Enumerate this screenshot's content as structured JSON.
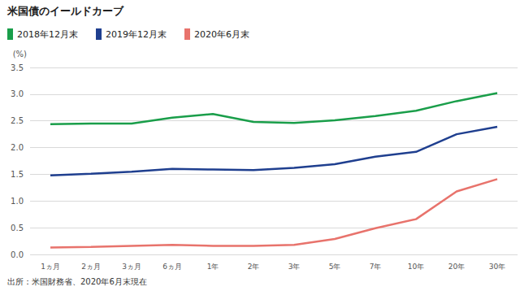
{
  "chart_data": {
    "type": "line",
    "title": "米国債のイールドカーブ",
    "ylabel": "(%)",
    "annotations": [
      "出所：米国財務省、2020年6月末現在"
    ],
    "categories": [
      "1ヵ月",
      "2ヵ月",
      "3ヵ月",
      "6ヵ月",
      "1年",
      "2年",
      "3年",
      "5年",
      "7年",
      "10年",
      "20年",
      "30年"
    ],
    "series": [
      {
        "name": "2018年12月末",
        "color": "#1a9e4a",
        "values": [
          2.44,
          2.45,
          2.45,
          2.56,
          2.63,
          2.48,
          2.46,
          2.51,
          2.59,
          2.69,
          2.87,
          3.02
        ]
      },
      {
        "name": "2019年12月末",
        "color": "#1f3f8f",
        "values": [
          1.48,
          1.51,
          1.55,
          1.6,
          1.59,
          1.58,
          1.62,
          1.69,
          1.83,
          1.92,
          2.25,
          2.39
        ]
      },
      {
        "name": "2020年6月末",
        "color": "#e8736c",
        "values": [
          0.13,
          0.14,
          0.16,
          0.18,
          0.16,
          0.16,
          0.18,
          0.29,
          0.49,
          0.66,
          1.18,
          1.41
        ]
      }
    ],
    "ylim": [
      0,
      3.5
    ],
    "yticks": [
      {
        "value": 0,
        "label": "0.0"
      },
      {
        "value": 0.5,
        "label": "0.5"
      },
      {
        "value": 1,
        "label": "1.0"
      },
      {
        "value": 1.5,
        "label": "1.5"
      },
      {
        "value": 2,
        "label": "2.0"
      },
      {
        "value": 2.5,
        "label": "2.5"
      },
      {
        "value": 3,
        "label": "3.0"
      },
      {
        "value": 3.5,
        "label": "3.5"
      }
    ],
    "grid": true,
    "legend": "top-left"
  }
}
